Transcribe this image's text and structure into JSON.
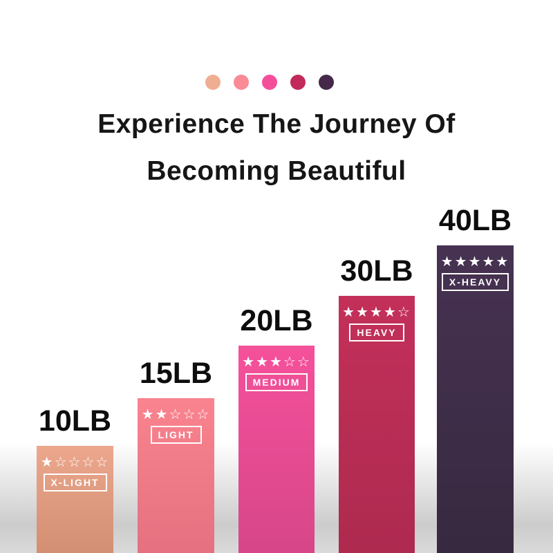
{
  "palette_dots": [
    "#EFAE92",
    "#F98A96",
    "#F44E9B",
    "#C12A5B",
    "#44294A"
  ],
  "title": {
    "line1": "Experience The Journey Of",
    "line2": "Becoming Beautiful"
  },
  "chart_data": {
    "type": "bar",
    "title": "Experience The Journey Of Becoming Beautiful",
    "categories": [
      "X-LIGHT",
      "LIGHT",
      "MEDIUM",
      "HEAVY",
      "X-HEAVY"
    ],
    "values": [
      10,
      15,
      20,
      30,
      40
    ],
    "unit": "LB",
    "value_labels": [
      "10LB",
      "15LB",
      "20LB",
      "30LB",
      "40LB"
    ],
    "ratings_out_of_5": [
      1,
      2,
      3,
      4,
      5
    ],
    "legend_position": "none",
    "grid": false,
    "bars": [
      {
        "value_label": "10LB",
        "stars": "★☆☆☆☆",
        "tag": "X-LIGHT",
        "color_top": "#ECA78D",
        "color_bottom": "#D28F72"
      },
      {
        "value_label": "15LB",
        "stars": "★★☆☆☆",
        "tag": "LIGHT",
        "color_top": "#F9848F",
        "color_bottom": "#E57180"
      },
      {
        "value_label": "20LB",
        "stars": "★★★☆☆",
        "tag": "MEDIUM",
        "color_top": "#F5519B",
        "color_bottom": "#D74689"
      },
      {
        "value_label": "30LB",
        "stars": "★★★★☆",
        "tag": "HEAVY",
        "color_top": "#C3305A",
        "color_bottom": "#AE2A4F"
      },
      {
        "value_label": "40LB",
        "stars": "★★★★★",
        "tag": "X-HEAVY",
        "color_top": "#473252",
        "color_bottom": "#37293F"
      }
    ]
  }
}
